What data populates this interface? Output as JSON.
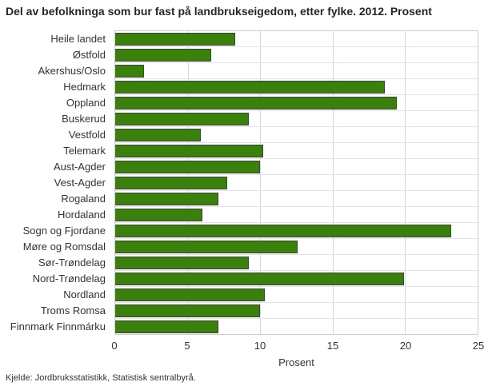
{
  "chart_data": {
    "type": "bar",
    "orientation": "horizontal",
    "title": "Del av befolkninga som bur fast på landbrukseigedom, etter fylke. 2012. Prosent",
    "categories": [
      "Heile landet",
      "Østfold",
      "Akershus/Oslo",
      "Hedmark",
      "Oppland",
      "Buskerud",
      "Vestfold",
      "Telemark",
      "Aust-Agder",
      "Vest-Agder",
      "Rogaland",
      "Hordaland",
      "Sogn og Fjordane",
      "Møre og Romsdal",
      "Sør-Trøndelag",
      "Nord-Trøndelag",
      "Nordland",
      "Troms Romsa",
      "Finnmark Finnmárku"
    ],
    "values": [
      8.3,
      6.6,
      2.0,
      18.6,
      19.4,
      9.2,
      5.9,
      10.2,
      10.0,
      7.7,
      7.1,
      6.0,
      23.2,
      12.6,
      9.2,
      19.9,
      10.3,
      10.0,
      7.1
    ],
    "xlabel": "Prosent",
    "xlim": [
      0,
      25
    ],
    "xticks": [
      0,
      5,
      10,
      15,
      20,
      25
    ],
    "grid": true,
    "legend": false
  },
  "footer": {
    "source": "Kjelde: Jordbruksstatistikk, Statistisk sentralbyrå."
  },
  "colors": {
    "bar_fill": "#3a810c",
    "bar_border": "#404040",
    "gridline": "#d6d6d6",
    "row_separator": "#e4e4e4",
    "plot_border": "#cccccc",
    "text": "#333333"
  }
}
